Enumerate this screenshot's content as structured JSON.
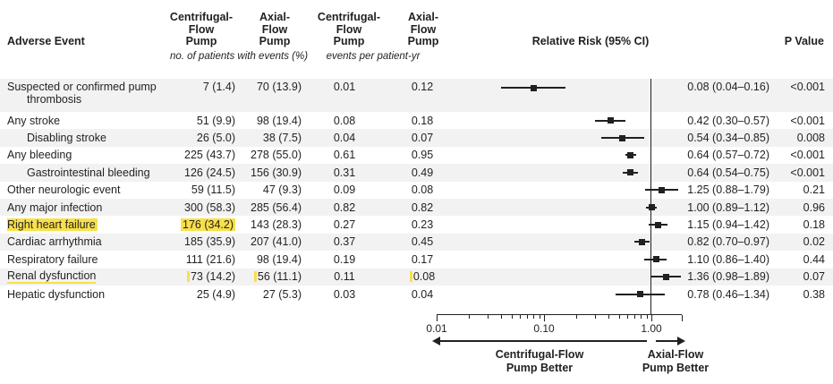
{
  "colors": {
    "text": "#231f20",
    "stripe": "#f2f2f3",
    "highlight": "#f8e04b",
    "marker": "#231f20"
  },
  "header": {
    "row_label": "Adverse Event",
    "columns": [
      {
        "lines": [
          "Centrifugal-",
          "Flow",
          "Pump"
        ]
      },
      {
        "lines": [
          "Axial-",
          "Flow",
          "Pump"
        ]
      },
      {
        "lines": [
          "Centrifugal-",
          "Flow",
          "Pump"
        ]
      },
      {
        "lines": [
          "Axial-",
          "Flow",
          "Pump"
        ]
      }
    ],
    "subheaders": [
      "no. of patients with events (%)",
      "events per patient-yr"
    ],
    "rr_header": "Relative Risk (95% CI)",
    "p_header": "P Value"
  },
  "rows": [
    {
      "label": "Suspected or confirmed pump thrombosis",
      "tall": true,
      "n1": "7 (1.4)",
      "n2": "70 (13.9)",
      "e1": "0.01",
      "e2": "0.12",
      "rr": 0.08,
      "lo": 0.04,
      "hi": 0.16,
      "rr_text": "0.08 (0.04–0.16)",
      "p": "<0.001"
    },
    {
      "label": "Any stroke",
      "n1": "51 (9.9)",
      "n2": "98 (19.4)",
      "e1": "0.08",
      "e2": "0.18",
      "rr": 0.42,
      "lo": 0.3,
      "hi": 0.57,
      "rr_text": "0.42 (0.30–0.57)",
      "p": "<0.001"
    },
    {
      "label": "Disabling stroke",
      "indent": true,
      "n1": "26 (5.0)",
      "n2": "38 (7.5)",
      "e1": "0.04",
      "e2": "0.07",
      "rr": 0.54,
      "lo": 0.34,
      "hi": 0.85,
      "rr_text": "0.54 (0.34–0.85)",
      "p": "0.008"
    },
    {
      "label": "Any bleeding",
      "n1": "225 (43.7)",
      "n2": "278 (55.0)",
      "e1": "0.61",
      "e2": "0.95",
      "rr": 0.64,
      "lo": 0.57,
      "hi": 0.72,
      "rr_text": "0.64 (0.57–0.72)",
      "p": "<0.001"
    },
    {
      "label": "Gastrointestinal bleeding",
      "indent": true,
      "n1": "126 (24.5)",
      "n2": "156 (30.9)",
      "e1": "0.31",
      "e2": "0.49",
      "rr": 0.64,
      "lo": 0.54,
      "hi": 0.75,
      "rr_text": "0.64 (0.54–0.75)",
      "p": "<0.001"
    },
    {
      "label": "Other neurologic event",
      "n1": "59 (11.5)",
      "n2": "47 (9.3)",
      "e1": "0.09",
      "e2": "0.08",
      "rr": 1.25,
      "lo": 0.88,
      "hi": 1.79,
      "rr_text": "1.25 (0.88–1.79)",
      "p": "0.21"
    },
    {
      "label": "Any major infection",
      "n1": "300 (58.3)",
      "n2": "285 (56.4)",
      "e1": "0.82",
      "e2": "0.82",
      "rr": 1.0,
      "lo": 0.89,
      "hi": 1.12,
      "rr_text": "1.00 (0.89–1.12)",
      "p": "0.96"
    },
    {
      "label": "Right heart failure",
      "highlight_label": true,
      "highlight_n1": true,
      "n1": "176 (34.2)",
      "n2": "143 (28.3)",
      "e1": "0.27",
      "e2": "0.23",
      "rr": 1.15,
      "lo": 0.94,
      "hi": 1.42,
      "rr_text": "1.15 (0.94–1.42)",
      "p": "0.18"
    },
    {
      "label": "Cardiac arrhythmia",
      "n1": "185 (35.9)",
      "n2": "207 (41.0)",
      "e1": "0.37",
      "e2": "0.45",
      "rr": 0.82,
      "lo": 0.7,
      "hi": 0.97,
      "rr_text": "0.82 (0.70–0.97)",
      "p": "0.02"
    },
    {
      "label": "Respiratory failure",
      "n1": "111 (21.6)",
      "n2": "98 (19.4)",
      "e1": "0.19",
      "e2": "0.17",
      "rr": 1.1,
      "lo": 0.86,
      "hi": 1.4,
      "rr_text": "1.10 (0.86–1.40)",
      "p": "0.44"
    },
    {
      "label": "Renal dysfunction",
      "underline_label": true,
      "marks": [
        "n1",
        "n2",
        "e2"
      ],
      "n1": "73 (14.2)",
      "n2": "56 (11.1)",
      "e1": "0.11",
      "e2": "0.08",
      "rr": 1.36,
      "lo": 0.98,
      "hi": 1.89,
      "rr_text": "1.36 (0.98–1.89)",
      "p": "0.07"
    },
    {
      "label": "Hepatic dysfunction",
      "n1": "25 (4.9)",
      "n2": "27 (5.3)",
      "e1": "0.03",
      "e2": "0.04",
      "rr": 0.78,
      "lo": 0.46,
      "hi": 1.34,
      "rr_text": "0.78 (0.46–1.34)",
      "p": "0.38"
    }
  ],
  "axis": {
    "tick_values": [
      0.01,
      0.1,
      1.0
    ],
    "tick_labels": [
      "0.01",
      "0.10",
      "1.00"
    ]
  },
  "footer": {
    "left_label_lines": [
      "Centrifugal-Flow",
      "Pump Better"
    ],
    "right_label_lines": [
      "Axial-Flow",
      "Pump Better"
    ]
  },
  "chart_data": {
    "type": "scatter",
    "variant": "forest-plot",
    "title": "Relative Risk (95% CI)",
    "x_scale": "log",
    "xlim": [
      0.01,
      2.0
    ],
    "x_tick_labels": [
      "0.01",
      "0.10",
      "1.00"
    ],
    "reference_x": 1.0,
    "legend_position": "none",
    "direction_labels": {
      "left": "Centrifugal-Flow Pump Better",
      "right": "Axial-Flow Pump Better"
    },
    "points": [
      {
        "label": "Suspected or confirmed pump thrombosis",
        "rr": 0.08,
        "ci_low": 0.04,
        "ci_high": 0.16,
        "p": "<0.001"
      },
      {
        "label": "Any stroke",
        "rr": 0.42,
        "ci_low": 0.3,
        "ci_high": 0.57,
        "p": "<0.001"
      },
      {
        "label": "Disabling stroke",
        "rr": 0.54,
        "ci_low": 0.34,
        "ci_high": 0.85,
        "p": "0.008"
      },
      {
        "label": "Any bleeding",
        "rr": 0.64,
        "ci_low": 0.57,
        "ci_high": 0.72,
        "p": "<0.001"
      },
      {
        "label": "Gastrointestinal bleeding",
        "rr": 0.64,
        "ci_low": 0.54,
        "ci_high": 0.75,
        "p": "<0.001"
      },
      {
        "label": "Other neurologic event",
        "rr": 1.25,
        "ci_low": 0.88,
        "ci_high": 1.79,
        "p": "0.21"
      },
      {
        "label": "Any major infection",
        "rr": 1.0,
        "ci_low": 0.89,
        "ci_high": 1.12,
        "p": "0.96"
      },
      {
        "label": "Right heart failure",
        "rr": 1.15,
        "ci_low": 0.94,
        "ci_high": 1.42,
        "p": "0.18"
      },
      {
        "label": "Cardiac arrhythmia",
        "rr": 0.82,
        "ci_low": 0.7,
        "ci_high": 0.97,
        "p": "0.02"
      },
      {
        "label": "Respiratory failure",
        "rr": 1.1,
        "ci_low": 0.86,
        "ci_high": 1.4,
        "p": "0.44"
      },
      {
        "label": "Renal dysfunction",
        "rr": 1.36,
        "ci_low": 0.98,
        "ci_high": 1.89,
        "p": "0.07"
      },
      {
        "label": "Hepatic dysfunction",
        "rr": 0.78,
        "ci_low": 0.46,
        "ci_high": 1.34,
        "p": "0.38"
      }
    ]
  }
}
